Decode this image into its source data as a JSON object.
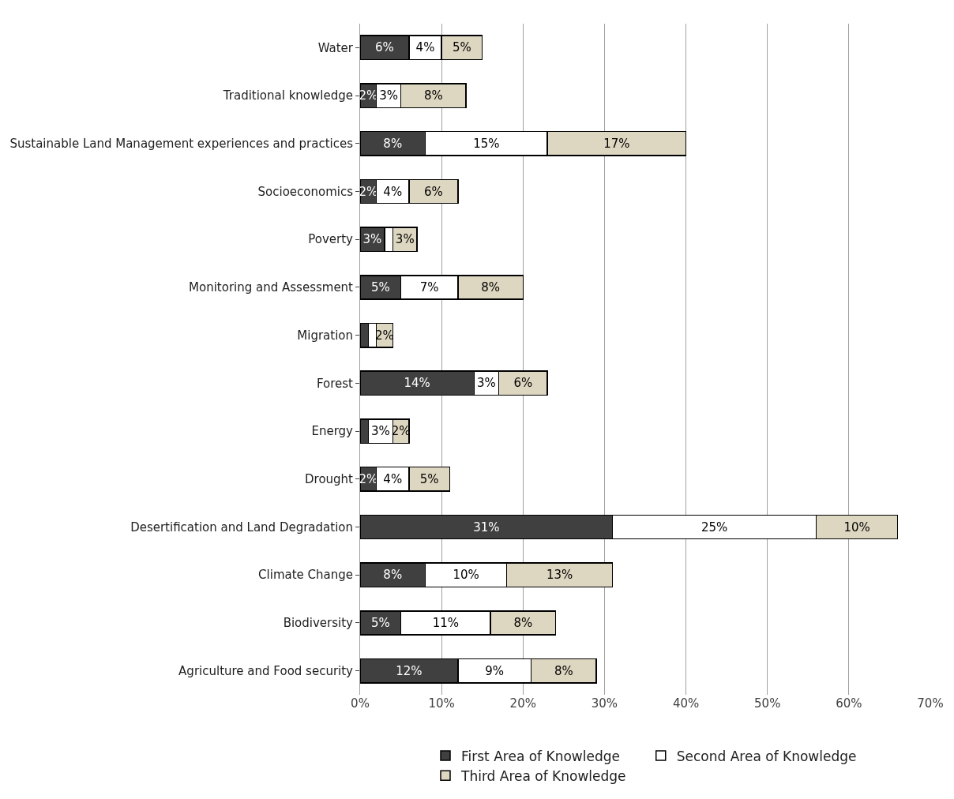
{
  "chart_data": {
    "type": "bar",
    "orientation": "horizontal",
    "stacked": true,
    "categories": [
      "Water",
      "Traditional knowledge",
      "Sustainable Land Management experiences and practices",
      "Socioeconomics",
      "Poverty",
      "Monitoring and Assessment",
      "Migration",
      "Forest",
      "Energy",
      "Drought",
      "Desertification and Land Degradation",
      "Climate Change",
      "Biodiversity",
      "Agriculture and Food security"
    ],
    "series": [
      {
        "name": "First Area of Knowledge",
        "color": "#404040",
        "values": [
          6,
          2,
          8,
          2,
          3,
          5,
          1,
          14,
          1,
          2,
          31,
          8,
          5,
          12
        ],
        "value_labels": [
          "6%",
          "2%",
          "8%",
          "2%",
          "3%",
          "5%",
          null,
          "14%",
          null,
          "2%",
          "31%",
          "8%",
          "5%",
          "12%"
        ]
      },
      {
        "name": "Second Area of Knowledge",
        "color": "#ffffff",
        "values": [
          4,
          3,
          15,
          4,
          1,
          7,
          1,
          3,
          3,
          4,
          25,
          10,
          11,
          9
        ],
        "value_labels": [
          "4%",
          "3%",
          "15%",
          "4%",
          null,
          "7%",
          null,
          "3%",
          "3%",
          "4%",
          "25%",
          "10%",
          "11%",
          "9%"
        ]
      },
      {
        "name": "Third Area of Knowledge",
        "color": "#ddd6c0",
        "values": [
          5,
          8,
          17,
          6,
          3,
          8,
          2,
          6,
          2,
          5,
          10,
          13,
          8,
          8
        ],
        "value_labels": [
          "5%",
          "8%",
          "17%",
          "6%",
          "3%",
          "8%",
          "2%",
          "6%",
          "2%",
          "5%",
          "10%",
          "13%",
          "8%",
          "8%"
        ]
      }
    ],
    "xlim": [
      0,
      70
    ],
    "xticks": [
      {
        "value": 0,
        "label": "0%"
      },
      {
        "value": 10,
        "label": "10%"
      },
      {
        "value": 20,
        "label": "20%"
      },
      {
        "value": 30,
        "label": "30%"
      },
      {
        "value": 40,
        "label": "40%"
      },
      {
        "value": 50,
        "label": "50%"
      },
      {
        "value": 60,
        "label": "60%"
      },
      {
        "value": 70,
        "label": "70%"
      }
    ],
    "grid": "x",
    "legend": "bottom"
  }
}
